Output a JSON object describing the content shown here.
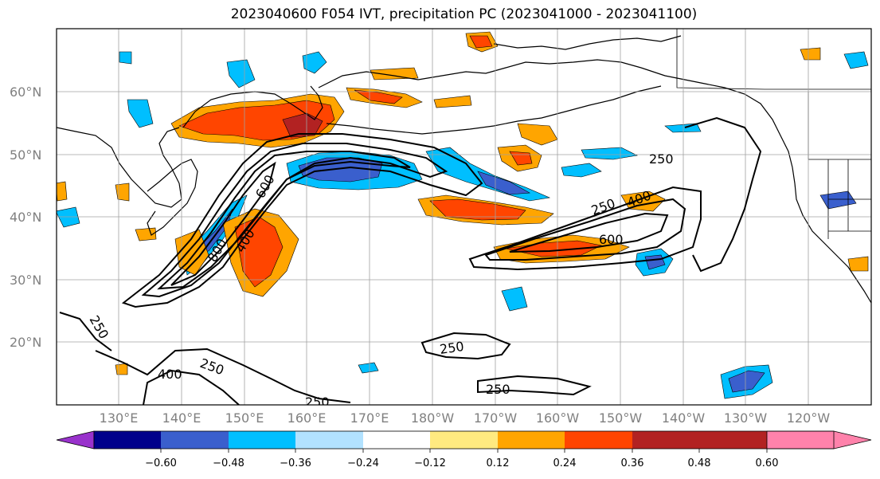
{
  "title": "2023040600 F054 IVT, precipitation PC (2023041000 - 2023041100)",
  "lat_labels": [
    "60°N",
    "50°N",
    "40°N",
    "30°N",
    "20°N"
  ],
  "lat_values": [
    60,
    50,
    40,
    30,
    20
  ],
  "lon_labels": [
    "130°E",
    "140°E",
    "150°E",
    "160°E",
    "170°E",
    "180°W",
    "170°W",
    "160°W",
    "150°W",
    "140°W",
    "130°W",
    "120°W"
  ],
  "lon_values": [
    130,
    140,
    150,
    160,
    170,
    180,
    190,
    200,
    210,
    220,
    230,
    240
  ],
  "extent": {
    "lon_min": 120,
    "lon_max": 250,
    "lat_min": 10,
    "lat_max": 70
  },
  "ivt_contour_labels": [
    "250",
    "250",
    "250",
    "250",
    "250",
    "250",
    "250",
    "400",
    "400",
    "400",
    "600",
    "600",
    "800"
  ],
  "colorbar": {
    "ticks": [
      "−0.60",
      "−0.48",
      "−0.36",
      "−0.24",
      "−0.12",
      "0.12",
      "0.24",
      "0.36",
      "0.48",
      "0.60"
    ],
    "colors": [
      "#9932cc",
      "#00008b",
      "#3a5fcd",
      "#00bfff",
      "#b2e2ff",
      "#ffffff",
      "#ffea80",
      "#ffa500",
      "#ff4500",
      "#b22222",
      "#ff82ab"
    ]
  },
  "colors": {
    "land_outline": "#000000",
    "grid": "#a0a0a0",
    "ivt_contour": "#000000"
  }
}
